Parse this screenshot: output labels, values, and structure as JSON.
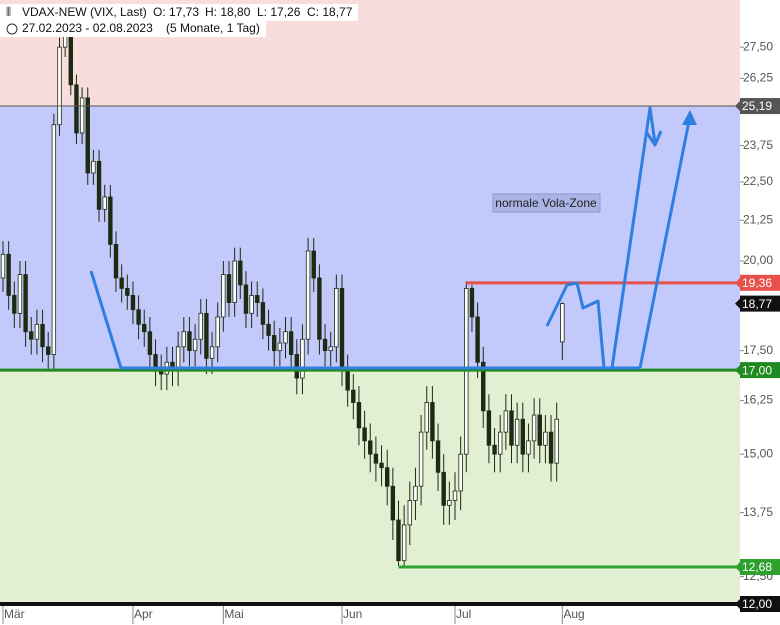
{
  "chart_data": {
    "type": "candlestick",
    "header": {
      "title": "VDAX-NEW (VIX, Last)",
      "open": "O: 17,73",
      "high": "H: 18,80",
      "low": "L: 17,26",
      "close": "C: 18,77",
      "range": "27.02.2023 - 02.08.2023",
      "span": "(5 Monate, 1 Tag)"
    },
    "annotation": "normale Vola-Zone",
    "log_scale": true,
    "ylim": [
      12,
      29.5
    ],
    "yticks": [
      {
        "value": 27.5,
        "label": "27,50"
      },
      {
        "value": 26.25,
        "label": "26,25"
      },
      {
        "value": 23.75,
        "label": "23,75"
      },
      {
        "value": 22.5,
        "label": "22,50"
      },
      {
        "value": 21.25,
        "label": "21,25"
      },
      {
        "value": 20,
        "label": "20,00"
      },
      {
        "value": 17.5,
        "label": "17,50"
      },
      {
        "value": 16.25,
        "label": "16,25"
      },
      {
        "value": 15,
        "label": "15,00"
      },
      {
        "value": 13.75,
        "label": "13,75"
      },
      {
        "value": 12.5,
        "label": "12,50"
      }
    ],
    "xticks": [
      {
        "value": 0,
        "label": "Mär"
      },
      {
        "value": 23,
        "label": "Apr"
      },
      {
        "value": 39,
        "label": "Mai"
      },
      {
        "value": 60,
        "label": "Jun"
      },
      {
        "value": 80,
        "label": "Jul"
      },
      {
        "value": 99,
        "label": "Aug"
      }
    ],
    "zones": [
      {
        "from": 25.19,
        "to": 29.5,
        "color": "#f9dcdc"
      },
      {
        "from": 17,
        "to": 25.19,
        "color": "#c3cafb"
      },
      {
        "from": 12,
        "to": 17,
        "color": "#e3efd3"
      }
    ],
    "levels": [
      {
        "value": 25.19,
        "label": "25,19",
        "color": "#555555",
        "from": 0,
        "width": 1
      },
      {
        "value": 19.36,
        "label": "19,36",
        "color": "#e8504a",
        "from": 82,
        "width": 3
      },
      {
        "value": 18.77,
        "label": "18,77",
        "color": "#111111",
        "from": null,
        "width": 0
      },
      {
        "value": 17,
        "label": "17,00",
        "color": "#1f8a1f",
        "from": 0,
        "width": 3
      },
      {
        "value": 12.68,
        "label": "12,68",
        "color": "#2ea02e",
        "from": 70,
        "width": 3
      },
      {
        "value": 12,
        "label": "12,00",
        "color": "#111111",
        "from": 0,
        "width": 4
      }
    ],
    "up_color": "#ffffff",
    "down_color": "#1c2b12",
    "open": [
      19.5,
      20.2,
      19.0,
      18.5,
      19.6,
      18.0,
      17.8,
      18.2,
      17.6,
      17.4,
      24.5,
      27.5,
      28.5,
      26.0,
      24.2,
      25.5,
      22.8,
      23.2,
      21.6,
      22.0,
      20.5,
      19.5,
      19.2,
      19.0,
      18.6,
      18.2,
      18.0,
      17.4,
      17.0,
      16.9,
      17.2,
      17.0,
      17.6,
      18.0,
      17.5,
      17.8,
      18.5,
      17.3,
      17.6,
      18.4,
      19.6,
      18.8,
      20.0,
      19.3,
      18.5,
      19.0,
      18.8,
      18.2,
      17.9,
      17.5,
      17.7,
      18.0,
      17.4,
      16.8,
      17.8,
      20.3,
      19.5,
      17.8,
      17.5,
      17.6,
      19.2,
      17.0,
      16.5,
      16.2,
      15.6,
      15.3,
      15.0,
      14.8,
      14.7,
      14.3,
      13.6,
      12.8,
      13.5,
      14.0,
      14.3,
      15.5,
      16.2,
      15.3,
      14.6,
      13.9,
      14.0,
      14.2,
      15.0,
      19.2,
      18.4,
      17.2,
      16.0,
      15.2,
      15.0,
      15.5,
      16.0,
      15.2,
      15.8,
      15.0,
      15.3,
      15.9,
      15.2,
      15.5,
      14.8,
      17.73
    ],
    "high": [
      20.6,
      20.6,
      19.4,
      20.0,
      20.0,
      18.4,
      18.6,
      18.6,
      18.0,
      24.9,
      27.9,
      28.9,
      28.9,
      26.4,
      25.9,
      25.9,
      23.6,
      23.6,
      22.4,
      22.4,
      20.9,
      19.9,
      19.6,
      19.4,
      19.0,
      18.6,
      18.4,
      17.8,
      17.4,
      17.6,
      17.6,
      18.0,
      18.4,
      18.4,
      18.2,
      18.9,
      18.9,
      18.0,
      18.8,
      20.0,
      20.0,
      20.4,
      20.4,
      19.7,
      19.4,
      19.4,
      19.2,
      18.6,
      18.3,
      18.1,
      18.4,
      18.4,
      17.8,
      18.2,
      20.7,
      20.7,
      19.9,
      18.2,
      18.0,
      19.6,
      19.6,
      17.4,
      16.9,
      16.6,
      16.0,
      15.7,
      15.4,
      15.2,
      15.1,
      14.7,
      14.0,
      13.9,
      14.4,
      14.7,
      15.9,
      16.6,
      16.6,
      15.7,
      15.0,
      14.4,
      14.6,
      15.4,
      19.4,
      19.3,
      18.8,
      17.6,
      16.4,
      15.6,
      15.9,
      16.4,
      16.4,
      16.2,
      16.2,
      15.7,
      16.3,
      16.3,
      15.9,
      15.9,
      16.2,
      18.8
    ],
    "low": [
      19.1,
      18.6,
      18.1,
      18.1,
      17.6,
      17.4,
      17.4,
      17.2,
      17.0,
      17.0,
      24.1,
      27.1,
      25.6,
      23.8,
      23.8,
      22.4,
      22.4,
      21.2,
      21.2,
      20.1,
      19.1,
      18.8,
      18.6,
      18.2,
      17.8,
      17.6,
      17.0,
      16.6,
      16.5,
      16.5,
      16.6,
      16.6,
      17.2,
      17.1,
      17.1,
      17.4,
      16.9,
      16.9,
      17.2,
      18.0,
      18.4,
      18.4,
      18.9,
      18.1,
      18.1,
      18.4,
      17.8,
      17.5,
      17.1,
      17.1,
      17.3,
      17.0,
      16.4,
      16.4,
      17.4,
      19.1,
      17.4,
      17.1,
      17.1,
      17.2,
      16.6,
      16.1,
      15.8,
      15.2,
      14.9,
      14.6,
      14.4,
      14.3,
      13.9,
      13.2,
      12.7,
      12.7,
      13.1,
      13.6,
      13.9,
      15.1,
      14.9,
      14.2,
      13.5,
      13.5,
      13.6,
      13.8,
      14.6,
      18.0,
      16.8,
      15.6,
      14.8,
      14.6,
      14.6,
      15.1,
      14.8,
      14.8,
      14.6,
      14.6,
      14.9,
      14.8,
      14.8,
      14.4,
      14.4,
      17.26
    ],
    "close": [
      20.2,
      19.0,
      18.5,
      19.6,
      18.0,
      17.8,
      18.2,
      17.6,
      17.4,
      24.5,
      27.5,
      28.5,
      26.0,
      24.2,
      25.5,
      22.8,
      23.2,
      21.6,
      22.0,
      20.5,
      19.5,
      19.2,
      19.0,
      18.6,
      18.2,
      18.0,
      17.4,
      17.0,
      16.9,
      17.2,
      17.0,
      17.6,
      18.0,
      17.5,
      17.8,
      18.5,
      17.3,
      17.6,
      18.4,
      19.6,
      18.8,
      20.0,
      19.3,
      18.5,
      19.0,
      18.8,
      18.2,
      17.9,
      17.5,
      17.7,
      18.0,
      17.4,
      16.8,
      17.8,
      20.3,
      19.5,
      17.8,
      17.5,
      17.6,
      19.2,
      17.0,
      16.5,
      16.2,
      15.6,
      15.3,
      15.0,
      14.8,
      14.7,
      14.3,
      13.6,
      12.8,
      13.5,
      14.0,
      14.3,
      15.5,
      16.2,
      15.3,
      14.6,
      13.9,
      14.0,
      14.2,
      15.0,
      19.2,
      18.4,
      17.2,
      16.0,
      15.2,
      15.0,
      15.5,
      16.0,
      15.2,
      15.8,
      15.0,
      15.3,
      15.9,
      15.2,
      15.5,
      14.8,
      15.8,
      18.77
    ]
  }
}
